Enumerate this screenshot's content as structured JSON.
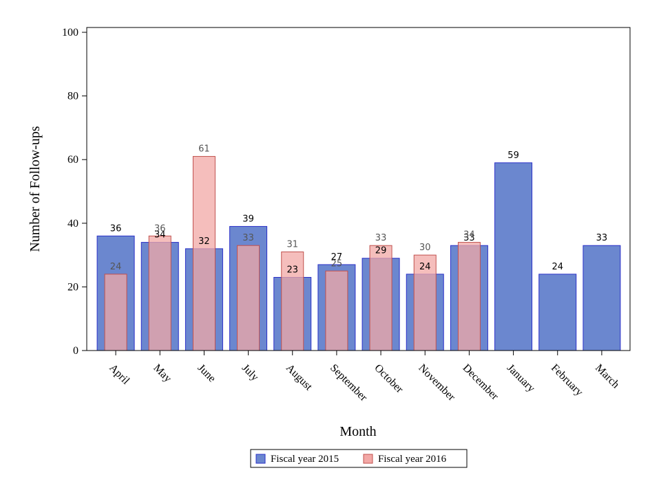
{
  "chart_data": {
    "type": "bar",
    "title": "",
    "xlabel": "Month",
    "ylabel": "Number of Follow-ups",
    "ylim": [
      0,
      100
    ],
    "yticks": [
      0,
      20,
      40,
      60,
      80,
      100
    ],
    "grid": false,
    "legend_position": "bottom",
    "categories": [
      "April",
      "May",
      "June",
      "July",
      "August",
      "September",
      "October",
      "November",
      "December",
      "January",
      "February",
      "March"
    ],
    "series": [
      {
        "name": "Fiscal year 2015",
        "color": "#6b87cf",
        "stroke": "#2a2fc8",
        "label_color": "#000000",
        "values": [
          36,
          34,
          32,
          39,
          23,
          27,
          29,
          24,
          33,
          59,
          24,
          33
        ]
      },
      {
        "name": "Fiscal year 2016",
        "color": "#f2a8a6",
        "stroke": "#c0504d",
        "label_color": "#555555",
        "values": [
          24,
          36,
          61,
          33,
          31,
          25,
          33,
          30,
          34,
          null,
          null,
          null
        ]
      }
    ]
  }
}
